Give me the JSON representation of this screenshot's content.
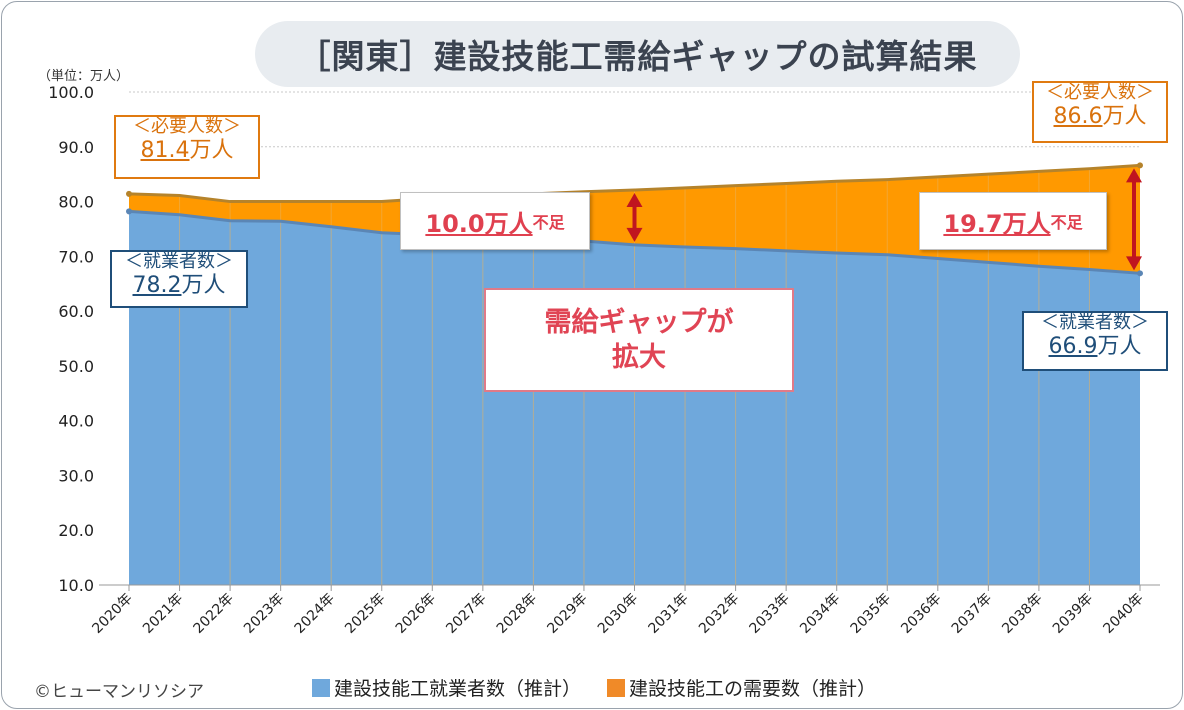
{
  "title": "［関東］建設技能工需給ギャップの試算結果",
  "unit_label": "（単位：万人）",
  "copyright": "©ヒューマンリソシア",
  "colors": {
    "employed": "#6fa8dc",
    "employed_line": "#5b86b5",
    "demand": "#ff9900",
    "demand_line": "#b5832b",
    "gap_arrow": "#c0151f",
    "callout_orange": "#e07a10",
    "callout_blue": "#1f4e79"
  },
  "callouts": {
    "demand_2020": {
      "label": "＜必要人数＞",
      "value": "81.4",
      "unit": "万人"
    },
    "employed_2020": {
      "label": "＜就業者数＞",
      "value": "78.2",
      "unit": "万人"
    },
    "demand_2040": {
      "label": "＜必要人数＞",
      "value": "86.6",
      "unit": "万人"
    },
    "employed_2040": {
      "label": "＜就業者数＞",
      "value": "66.9",
      "unit": "万人"
    },
    "gap_2030": {
      "value": "10.0万人",
      "suffix": "不足"
    },
    "gap_2040": {
      "value": "19.7万人",
      "suffix": "不足"
    }
  },
  "center_message": {
    "line1": "需給ギャップが",
    "line2": "拡大"
  },
  "chart_data": {
    "type": "area",
    "categories": [
      "2020年",
      "2021年",
      "2022年",
      "2023年",
      "2024年",
      "2025年",
      "2026年",
      "2027年",
      "2028年",
      "2029年",
      "2030年",
      "2031年",
      "2032年",
      "2033年",
      "2034年",
      "2035年",
      "2036年",
      "2037年",
      "2038年",
      "2039年",
      "2040年"
    ],
    "series": [
      {
        "name": "建設技能工就業者数（推計）",
        "values": [
          78.2,
          77.6,
          76.5,
          76.4,
          75.4,
          74.3,
          73.9,
          73.6,
          73.2,
          72.8,
          72.1,
          71.7,
          71.4,
          71.0,
          70.6,
          70.3,
          69.6,
          68.9,
          68.2,
          67.6,
          66.9
        ]
      },
      {
        "name": "建設技能工の需要数（推計）",
        "values": [
          81.4,
          81.1,
          80.0,
          80.0,
          80.0,
          80.0,
          80.6,
          81.0,
          81.4,
          81.8,
          82.1,
          82.5,
          82.9,
          83.3,
          83.7,
          84.0,
          84.5,
          85.0,
          85.5,
          86.0,
          86.6
        ]
      }
    ],
    "yticks": [
      "10.0",
      "20.0",
      "30.0",
      "40.0",
      "50.0",
      "60.0",
      "70.0",
      "80.0",
      "90.0",
      "100.0"
    ],
    "ylim": [
      10,
      100
    ],
    "grid": true,
    "legend": "bottom"
  }
}
